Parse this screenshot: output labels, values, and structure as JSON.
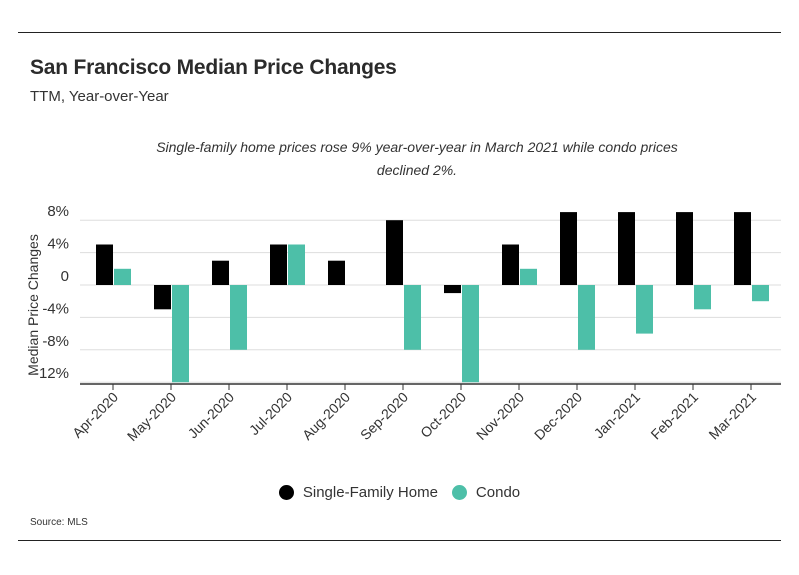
{
  "title": "San Francisco Median Price Changes",
  "subtitle": "TTM, Year-over-Year",
  "annotation": "Single-family home prices rose 9% year-over-year in March 2021 while condo prices declined 2%.",
  "source": "Source:  MLS",
  "colors": {
    "single_family": "#000000",
    "condo": "#4dbfa8",
    "grid": "#dddddd",
    "axis": "#333333"
  },
  "legend": [
    {
      "label": "Single-Family Home",
      "color": "#000000"
    },
    {
      "label": "Condo",
      "color": "#4dbfa8"
    }
  ],
  "chart_data": {
    "type": "bar",
    "title": "San Francisco Median Price Changes",
    "subtitle": "TTM, Year-over-Year",
    "xlabel": "",
    "ylabel": "Median Price Changes",
    "ylim": [
      -13,
      9
    ],
    "yticks": [
      8,
      4,
      0,
      -4,
      -8,
      -12
    ],
    "ytick_labels": [
      "8%",
      "4%",
      "0",
      "-4%",
      "-8%",
      "-12%"
    ],
    "categories": [
      "Apr-2020",
      "May-2020",
      "Jun-2020",
      "Jul-2020",
      "Aug-2020",
      "Sep-2020",
      "Oct-2020",
      "Nov-2020",
      "Dec-2020",
      "Jan-2021",
      "Feb-2021",
      "Mar-2021"
    ],
    "series": [
      {
        "name": "Single-Family Home",
        "color": "#000000",
        "values": [
          5,
          -3,
          3,
          5,
          3,
          8,
          -1,
          5,
          9,
          9,
          9,
          9
        ]
      },
      {
        "name": "Condo",
        "color": "#4dbfa8",
        "values": [
          2,
          -12,
          -8,
          5,
          0,
          -8,
          -12,
          2,
          -8,
          -6,
          -3,
          -2
        ]
      }
    ],
    "legend_position": "bottom-center",
    "grid": true
  }
}
